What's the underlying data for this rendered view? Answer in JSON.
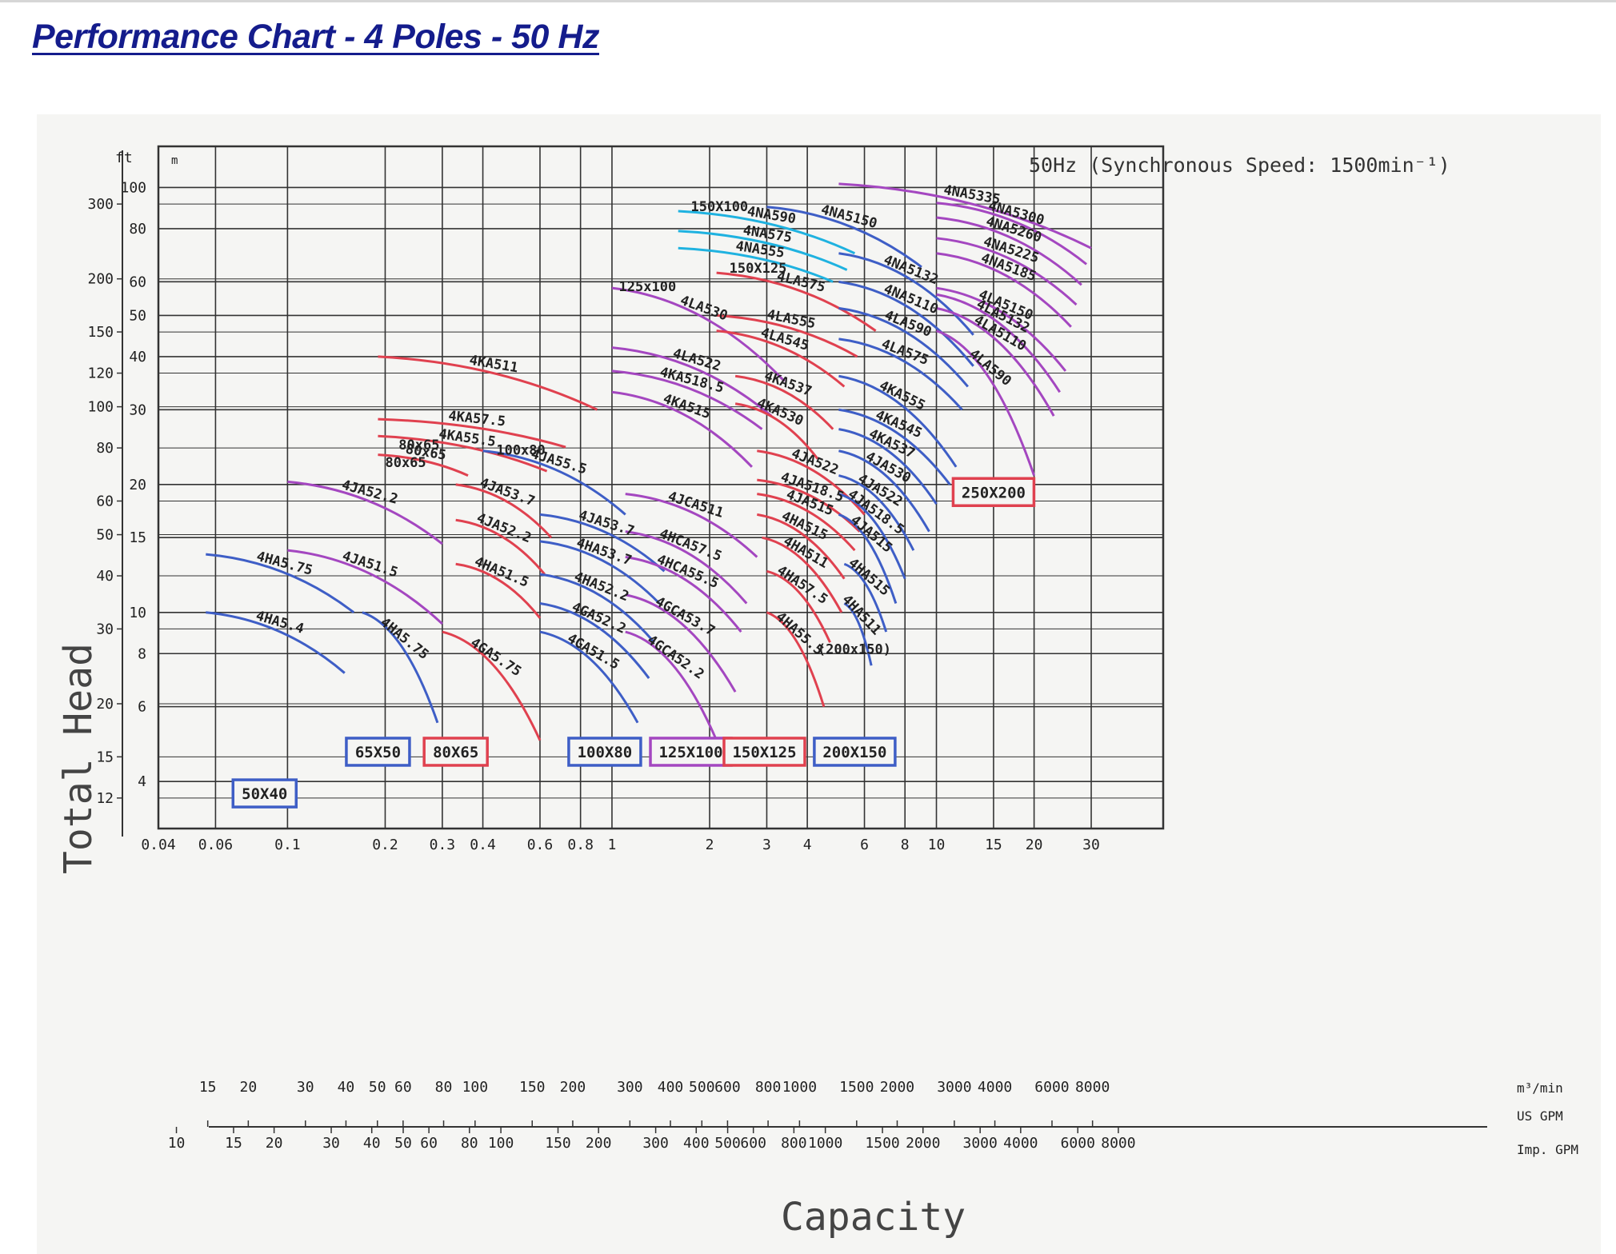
{
  "page": {
    "title": "Performance Chart - 4 Poles - 50 Hz"
  },
  "chart_data": {
    "type": "line",
    "title": "50Hz (Synchronous Speed: 1500min⁻¹)",
    "xlabel": "Capacity",
    "ylabel": "Total Head",
    "x_scale": "log",
    "y_scale": "log",
    "xlim": [
      0.04,
      50
    ],
    "ylim": [
      3.1,
      125
    ],
    "x_unit": "m³/min",
    "y_unit_left": "ft",
    "y_unit_right": "m",
    "x_unit_us": "US GPM",
    "x_unit_imp": "Imp. GPM",
    "x_ticks": [
      {
        "v": 0.04,
        "l": "0.04"
      },
      {
        "v": 0.06,
        "l": "0.06"
      },
      {
        "v": 0.1,
        "l": "0.1"
      },
      {
        "v": 0.2,
        "l": "0.2"
      },
      {
        "v": 0.3,
        "l": "0.3"
      },
      {
        "v": 0.4,
        "l": "0.4"
      },
      {
        "v": 0.6,
        "l": "0.6"
      },
      {
        "v": 0.8,
        "l": "0.8"
      },
      {
        "v": 1,
        "l": "1"
      },
      {
        "v": 2,
        "l": "2"
      },
      {
        "v": 3,
        "l": "3"
      },
      {
        "v": 4,
        "l": "4"
      },
      {
        "v": 6,
        "l": "6"
      },
      {
        "v": 8,
        "l": "8"
      },
      {
        "v": 10,
        "l": "10"
      },
      {
        "v": 15,
        "l": "15"
      },
      {
        "v": 20,
        "l": "20"
      },
      {
        "v": 30,
        "l": "30"
      }
    ],
    "us_gpm_ticks": [
      "15",
      "20",
      "30",
      "40",
      "50",
      "60",
      "80",
      "100",
      "150",
      "200",
      "300",
      "400",
      "500",
      "600",
      "800",
      "1000",
      "1500",
      "2000",
      "3000",
      "4000",
      "6000",
      "8000"
    ],
    "imp_gpm_ticks": [
      "10",
      "15",
      "20",
      "30",
      "40",
      "50",
      "60",
      "80",
      "100",
      "150",
      "200",
      "300",
      "400",
      "500",
      "600",
      "800",
      "1000",
      "1500",
      "2000",
      "3000",
      "4000",
      "6000",
      "8000"
    ],
    "y_ticks_m": [
      {
        "v": 4,
        "l": "4"
      },
      {
        "v": 6,
        "l": "6"
      },
      {
        "v": 8,
        "l": "8"
      },
      {
        "v": 10,
        "l": "10"
      },
      {
        "v": 15,
        "l": "15"
      },
      {
        "v": 20,
        "l": "20"
      },
      {
        "v": 30,
        "l": "30"
      },
      {
        "v": 40,
        "l": "40"
      },
      {
        "v": 50,
        "l": "50"
      },
      {
        "v": 60,
        "l": "60"
      },
      {
        "v": 80,
        "l": "80"
      },
      {
        "v": 100,
        "l": "100"
      }
    ],
    "y_ticks_ft": [
      "12",
      "15",
      "20",
      "30",
      "40",
      "50",
      "60",
      "80",
      "100",
      "120",
      "150",
      "200",
      "300"
    ],
    "grid": true,
    "colors": {
      "blue": "#3e5ec6",
      "red": "#e0414f",
      "purple": "#a447c0",
      "cyan": "#1fb2e0",
      "grid": "#333333"
    },
    "size_boxes": [
      {
        "label": "50X40",
        "color": "blue"
      },
      {
        "label": "65X50",
        "color": "blue"
      },
      {
        "label": "80X65",
        "color": "red"
      },
      {
        "label": "100X80",
        "color": "blue"
      },
      {
        "label": "125X100",
        "color": "purple"
      },
      {
        "label": "150X125",
        "color": "red"
      },
      {
        "label": "200X150",
        "color": "blue"
      },
      {
        "label": "250X200",
        "color": "red"
      }
    ],
    "series": [
      {
        "name": "4HA5.4",
        "color": "blue",
        "q": [
          0.056,
          0.15
        ],
        "h": [
          10,
          7.2
        ]
      },
      {
        "name": "4HA5.75",
        "color": "blue",
        "q": [
          0.056,
          0.16
        ],
        "h": [
          13.7,
          10
        ]
      },
      {
        "name": "4HA5.75",
        "color": "blue",
        "q": [
          0.17,
          0.29
        ],
        "h": [
          10,
          5.5
        ]
      },
      {
        "name": "4JA51.5",
        "color": "purple",
        "q": [
          0.1,
          0.3
        ],
        "h": [
          14,
          9.4
        ]
      },
      {
        "name": "4JA52.2",
        "color": "purple",
        "q": [
          0.1,
          0.3
        ],
        "h": [
          20.3,
          14.5
        ]
      },
      {
        "name": "4GA5.75",
        "color": "red",
        "q": [
          0.3,
          0.6
        ],
        "h": [
          9,
          5
        ]
      },
      {
        "name": "4HA51.5",
        "color": "red",
        "q": [
          0.33,
          0.6
        ],
        "h": [
          13,
          9.7
        ]
      },
      {
        "name": "4JA52.2",
        "color": "red",
        "q": [
          0.33,
          0.62
        ],
        "h": [
          16.5,
          12.3
        ]
      },
      {
        "name": "4JA53.7",
        "color": "red",
        "q": [
          0.33,
          0.65
        ],
        "h": [
          20,
          15
        ]
      },
      {
        "name": "80x65",
        "color": "red",
        "q": [
          0.19,
          0.36
        ],
        "h": [
          23.5,
          21
        ]
      },
      {
        "name": "4KA55.5",
        "color": "red",
        "q": [
          0.19,
          0.63
        ],
        "h": [
          26,
          21.5
        ]
      },
      {
        "name": "4KA57.5",
        "color": "red",
        "q": [
          0.19,
          0.72
        ],
        "h": [
          28.5,
          24.5
        ]
      },
      {
        "name": "4KA511",
        "color": "red",
        "q": [
          0.19,
          0.9
        ],
        "h": [
          40,
          30
        ]
      },
      {
        "name": "4GA51.5",
        "color": "blue",
        "q": [
          0.6,
          1.2
        ],
        "h": [
          9,
          5.5
        ]
      },
      {
        "name": "4GA52.2",
        "color": "blue",
        "q": [
          0.6,
          1.3
        ],
        "h": [
          10.5,
          7
        ]
      },
      {
        "name": "4HA52.2",
        "color": "blue",
        "q": [
          0.6,
          1.35
        ],
        "h": [
          12.3,
          8.5
        ]
      },
      {
        "name": "4HA53.7",
        "color": "blue",
        "q": [
          0.6,
          1.4
        ],
        "h": [
          14.7,
          10.5
        ]
      },
      {
        "name": "4JA53.7",
        "color": "blue",
        "q": [
          0.6,
          1.45
        ],
        "h": [
          17,
          12.5
        ]
      },
      {
        "name": "4JA55.5",
        "color": "blue",
        "q": [
          0.4,
          1.1
        ],
        "h": [
          24,
          17
        ]
      },
      {
        "name": "4GCA52.2",
        "color": "purple",
        "q": [
          1.1,
          2.1
        ],
        "h": [
          9,
          5
        ]
      },
      {
        "name": "4GCA53.7",
        "color": "purple",
        "q": [
          1.1,
          2.4
        ],
        "h": [
          11,
          6.5
        ]
      },
      {
        "name": "4HCA55.5",
        "color": "purple",
        "q": [
          1.1,
          2.5
        ],
        "h": [
          13.5,
          9
        ]
      },
      {
        "name": "4HCA57.5",
        "color": "purple",
        "q": [
          1.1,
          2.6
        ],
        "h": [
          15.5,
          10.5
        ]
      },
      {
        "name": "4JCA511",
        "color": "purple",
        "q": [
          1.1,
          2.8
        ],
        "h": [
          19,
          13.5
        ]
      },
      {
        "name": "4KA515",
        "color": "purple",
        "q": [
          1.0,
          2.7
        ],
        "h": [
          33,
          22
        ]
      },
      {
        "name": "4KA518.5",
        "color": "purple",
        "q": [
          1.0,
          2.9
        ],
        "h": [
          37,
          27
        ]
      },
      {
        "name": "4LA522",
        "color": "purple",
        "q": [
          1.0,
          3.1
        ],
        "h": [
          42,
          29
        ]
      },
      {
        "name": "4LA530",
        "color": "purple",
        "q": [
          1.0,
          3.4
        ],
        "h": [
          58,
          35
        ]
      },
      {
        "name": "4HA55.5",
        "color": "red",
        "q": [
          3.0,
          4.5
        ],
        "h": [
          10,
          6
        ]
      },
      {
        "name": "4HA57.5",
        "color": "red",
        "q": [
          3.0,
          4.7
        ],
        "h": [
          12.5,
          8.5
        ]
      },
      {
        "name": "4HA511",
        "color": "red",
        "q": [
          2.9,
          5.1
        ],
        "h": [
          15,
          10
        ]
      },
      {
        "name": "4HA515",
        "color": "red",
        "q": [
          2.8,
          5.2
        ],
        "h": [
          17,
          12
        ]
      },
      {
        "name": "4JA515",
        "color": "red",
        "q": [
          2.8,
          5.6
        ],
        "h": [
          19,
          14
        ]
      },
      {
        "name": "4JA518.5",
        "color": "red",
        "q": [
          2.8,
          5.8
        ],
        "h": [
          20.5,
          15.5
        ]
      },
      {
        "name": "4JA522",
        "color": "red",
        "q": [
          2.8,
          6.0
        ],
        "h": [
          24,
          17
        ]
      },
      {
        "name": "4KA530",
        "color": "red",
        "q": [
          2.4,
          4.3
        ],
        "h": [
          31,
          23
        ]
      },
      {
        "name": "4KA537",
        "color": "red",
        "q": [
          2.4,
          4.8
        ],
        "h": [
          36,
          27
        ]
      },
      {
        "name": "4LA545",
        "color": "red",
        "q": [
          2.1,
          5.2
        ],
        "h": [
          46,
          34
        ]
      },
      {
        "name": "4LA555",
        "color": "red",
        "q": [
          2.1,
          5.7
        ],
        "h": [
          50,
          40
        ]
      },
      {
        "name": "4LA575",
        "color": "red",
        "q": [
          2.1,
          6.5
        ],
        "h": [
          63,
          46
        ]
      },
      {
        "name": "4HA511",
        "color": "blue",
        "q": [
          5.2,
          6.3
        ],
        "h": [
          10.5,
          7.5
        ]
      },
      {
        "name": "4HA515",
        "color": "blue",
        "q": [
          5.2,
          7.0
        ],
        "h": [
          13,
          9
        ]
      },
      {
        "name": "4JA515",
        "color": "blue",
        "q": [
          5.0,
          7.5
        ],
        "h": [
          17,
          10.5
        ]
      },
      {
        "name": "4JA518.5",
        "color": "blue",
        "q": [
          5.0,
          8.0
        ],
        "h": [
          19,
          12
        ]
      },
      {
        "name": "4JA522",
        "color": "blue",
        "q": [
          5.0,
          8.5
        ],
        "h": [
          21,
          14
        ]
      },
      {
        "name": "4JA530",
        "color": "blue",
        "q": [
          5.0,
          9.5
        ],
        "h": [
          24,
          15.5
        ]
      },
      {
        "name": "4KA537",
        "color": "blue",
        "q": [
          5.0,
          10.0
        ],
        "h": [
          27,
          18
        ]
      },
      {
        "name": "4KA545",
        "color": "blue",
        "q": [
          5.0,
          11.0
        ],
        "h": [
          30,
          20
        ]
      },
      {
        "name": "4KA555",
        "color": "blue",
        "q": [
          5.0,
          11.5
        ],
        "h": [
          36,
          22
        ]
      },
      {
        "name": "4LA575",
        "color": "blue",
        "q": [
          5.0,
          12.0
        ],
        "h": [
          44,
          30
        ]
      },
      {
        "name": "4LA590",
        "color": "blue",
        "q": [
          5.0,
          12.5
        ],
        "h": [
          52,
          34
        ]
      },
      {
        "name": "4NA5110",
        "color": "blue",
        "q": [
          5.0,
          13.0
        ],
        "h": [
          60,
          38
        ]
      },
      {
        "name": "4NA5132",
        "color": "blue",
        "q": [
          5.0,
          13.0
        ],
        "h": [
          70,
          45
        ]
      },
      {
        "name": "4NA5150",
        "color": "blue",
        "q": [
          3.0,
          9.0
        ],
        "h": [
          90,
          65
        ]
      },
      {
        "name": "4NA555",
        "color": "cyan",
        "q": [
          1.6,
          4.8
        ],
        "h": [
          72,
          60
        ]
      },
      {
        "name": "4NA575",
        "color": "cyan",
        "q": [
          1.6,
          5.3
        ],
        "h": [
          79,
          64
        ]
      },
      {
        "name": "4NA590",
        "color": "cyan",
        "q": [
          1.6,
          5.6
        ],
        "h": [
          88,
          70
        ]
      },
      {
        "name": "4LA590",
        "color": "purple",
        "q": [
          10.0,
          20.0
        ],
        "h": [
          46,
          21
        ]
      },
      {
        "name": "4LA5110",
        "color": "purple",
        "q": [
          10.0,
          23.0
        ],
        "h": [
          52,
          29
        ]
      },
      {
        "name": "4LA5132",
        "color": "purple",
        "q": [
          10.0,
          24.0
        ],
        "h": [
          56,
          33
        ]
      },
      {
        "name": "4LA5150",
        "color": "purple",
        "q": [
          10.0,
          25.0
        ],
        "h": [
          58,
          37
        ]
      },
      {
        "name": "4NA5185",
        "color": "purple",
        "q": [
          10.0,
          26.0
        ],
        "h": [
          70,
          47
        ]
      },
      {
        "name": "4NA5225",
        "color": "purple",
        "q": [
          10.0,
          27.0
        ],
        "h": [
          76,
          53
        ]
      },
      {
        "name": "4NA5260",
        "color": "purple",
        "q": [
          10.0,
          28.0
        ],
        "h": [
          85,
          59
        ]
      },
      {
        "name": "4NA5300",
        "color": "purple",
        "q": [
          10.0,
          29.0
        ],
        "h": [
          92,
          66
        ]
      },
      {
        "name": "4NA5335",
        "color": "purple",
        "q": [
          5.0,
          30.0
        ],
        "h": [
          102,
          72
        ]
      }
    ],
    "zone_labels": [
      "80x65",
      "80x65",
      "100x80",
      "125x100",
      "150X100",
      "150X125",
      "(200x150)"
    ]
  }
}
